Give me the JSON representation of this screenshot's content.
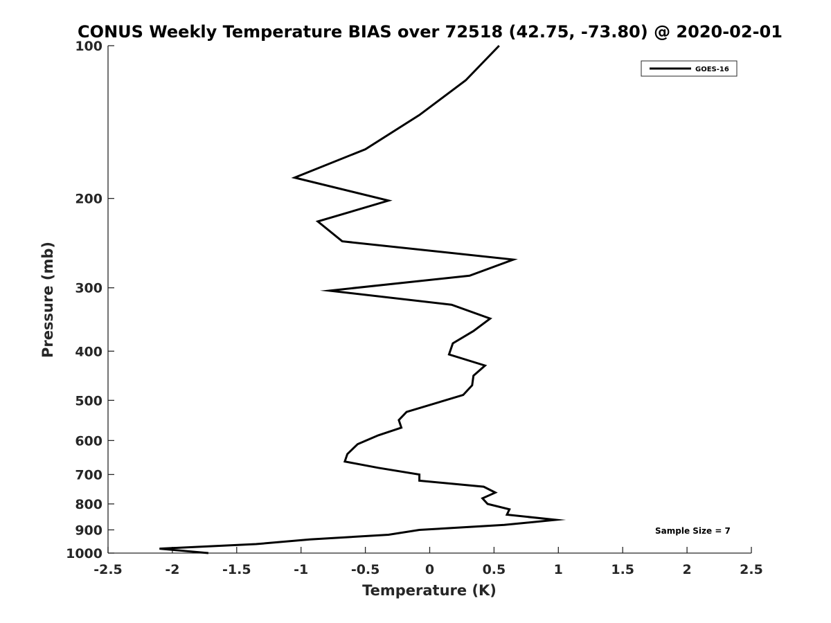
{
  "chart_data": {
    "type": "line",
    "title": "CONUS Weekly Temperature BIAS over 72518 (42.75, -73.80) @ 2020-02-01",
    "xlabel": "Temperature (K)",
    "ylabel": "Pressure (mb)",
    "xlim": [
      -2.5,
      2.5
    ],
    "ylim": [
      1000,
      100
    ],
    "yscale": "log",
    "grid": false,
    "legend_position": "top-right",
    "x_ticks": [
      -2.5,
      -2,
      -1.5,
      -1,
      -0.5,
      0,
      0.5,
      1,
      1.5,
      2,
      2.5
    ],
    "x_tick_labels": [
      "-2.5",
      "-2",
      "-1.5",
      "-1",
      "-0.5",
      "0",
      "0.5",
      "1",
      "1.5",
      "2",
      "2.5"
    ],
    "y_ticks": [
      100,
      200,
      300,
      400,
      500,
      600,
      700,
      800,
      900,
      1000
    ],
    "y_tick_labels": [
      "100",
      "200",
      "300",
      "400",
      "500",
      "600",
      "700",
      "800",
      "900",
      "1000"
    ],
    "series": [
      {
        "name": "GOES-16",
        "color": "#000000",
        "points": [
          {
            "temp": 0.54,
            "pres": 100
          },
          {
            "temp": 0.28,
            "pres": 117
          },
          {
            "temp": -0.08,
            "pres": 137
          },
          {
            "temp": -0.5,
            "pres": 160
          },
          {
            "temp": -1.05,
            "pres": 182
          },
          {
            "temp": -0.32,
            "pres": 202
          },
          {
            "temp": -0.87,
            "pres": 222
          },
          {
            "temp": -0.68,
            "pres": 243
          },
          {
            "temp": 0.65,
            "pres": 264
          },
          {
            "temp": 0.31,
            "pres": 284
          },
          {
            "temp": -0.78,
            "pres": 304
          },
          {
            "temp": 0.17,
            "pres": 324
          },
          {
            "temp": 0.47,
            "pres": 345
          },
          {
            "temp": 0.34,
            "pres": 365
          },
          {
            "temp": 0.18,
            "pres": 386
          },
          {
            "temp": 0.15,
            "pres": 406
          },
          {
            "temp": 0.43,
            "pres": 427
          },
          {
            "temp": 0.34,
            "pres": 447
          },
          {
            "temp": 0.33,
            "pres": 467
          },
          {
            "temp": 0.26,
            "pres": 488
          },
          {
            "temp": -0.18,
            "pres": 527
          },
          {
            "temp": -0.24,
            "pres": 547
          },
          {
            "temp": -0.22,
            "pres": 566
          },
          {
            "temp": -0.4,
            "pres": 586
          },
          {
            "temp": -0.56,
            "pres": 610
          },
          {
            "temp": -0.64,
            "pres": 638
          },
          {
            "temp": -0.66,
            "pres": 660
          },
          {
            "temp": -0.4,
            "pres": 679
          },
          {
            "temp": -0.08,
            "pres": 700
          },
          {
            "temp": -0.08,
            "pres": 720
          },
          {
            "temp": 0.42,
            "pres": 740
          },
          {
            "temp": 0.51,
            "pres": 760
          },
          {
            "temp": 0.41,
            "pres": 780
          },
          {
            "temp": 0.45,
            "pres": 800
          },
          {
            "temp": 0.62,
            "pres": 820
          },
          {
            "temp": 0.6,
            "pres": 840
          },
          {
            "temp": 0.98,
            "pres": 860
          },
          {
            "temp": 0.58,
            "pres": 880
          },
          {
            "temp": -0.08,
            "pres": 900
          },
          {
            "temp": -0.32,
            "pres": 920
          },
          {
            "temp": -0.93,
            "pres": 940
          },
          {
            "temp": -1.35,
            "pres": 960
          },
          {
            "temp": -2.1,
            "pres": 980
          },
          {
            "temp": -1.72,
            "pres": 1000
          }
        ]
      }
    ],
    "legend": [
      {
        "label": "GOES-16",
        "color": "#000000"
      }
    ],
    "annotations": [
      {
        "text": "Sample Size = 7",
        "anchor": "bottom-right"
      }
    ]
  }
}
